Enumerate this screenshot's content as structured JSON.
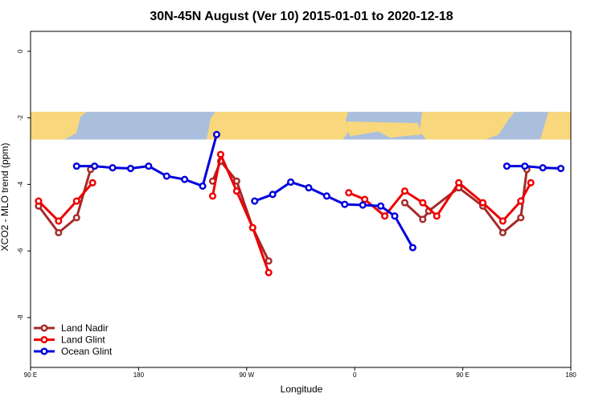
{
  "chart_data": {
    "type": "line",
    "title": "30N-45N August (Ver 10)   2015-01-01 to 2020-12-18",
    "xlabel": "Longitude",
    "ylabel": "XCO2 - MLO trend (ppm)",
    "xlim": [
      -90,
      180
    ],
    "ylim": [
      -9.5,
      0.6
    ],
    "x_ticks": [
      {
        "value": -90,
        "label": "90 E"
      },
      {
        "value": -36,
        "label": "180"
      },
      {
        "value": 18,
        "label": "90 W"
      },
      {
        "value": 72,
        "label": "0"
      },
      {
        "value": 126,
        "label": "90 E"
      },
      {
        "value": 180,
        "label": "180"
      }
    ],
    "y_ticks": [
      {
        "value": 0,
        "label": "0"
      },
      {
        "value": -2,
        "label": "-2"
      },
      {
        "value": -4,
        "label": "-4"
      },
      {
        "value": -6,
        "label": "-6"
      },
      {
        "value": -8,
        "label": "-8"
      }
    ],
    "map_band": {
      "ymin": -2.65,
      "ymax": -1.82,
      "ocean_color": "#a9bfdc",
      "land_color": "#f9d77c"
    },
    "grid": false,
    "legend_position": "bottom-left",
    "series": [
      {
        "name": "Land Nadir",
        "color": "#a52a2a",
        "segments": [
          [
            [
              -86,
              -4.65
            ],
            [
              -76,
              -5.45
            ],
            [
              -67,
              -5.0
            ],
            [
              -60,
              -3.55
            ]
          ],
          [
            [
              1,
              -3.9
            ],
            [
              5,
              -3.3
            ],
            [
              13,
              -3.9
            ],
            [
              21,
              -5.3
            ],
            [
              29,
              -6.3
            ]
          ],
          [
            [
              97,
              -4.55
            ],
            [
              106,
              -5.05
            ],
            [
              109,
              -4.8
            ],
            [
              124,
              -4.1
            ],
            [
              136,
              -4.65
            ],
            [
              146,
              -5.45
            ],
            [
              155,
              -5.0
            ],
            [
              158,
              -3.55
            ]
          ]
        ]
      },
      {
        "name": "Land Glint",
        "color": "#ee0000",
        "segments": [
          [
            [
              -86,
              -4.5
            ],
            [
              -76,
              -5.1
            ],
            [
              -67,
              -4.5
            ],
            [
              -59,
              -3.95
            ]
          ],
          [
            [
              1,
              -4.35
            ],
            [
              5,
              -3.1
            ],
            [
              13,
              -4.2
            ],
            [
              21,
              -5.3
            ],
            [
              29,
              -6.65
            ]
          ],
          [
            [
              69,
              -4.25
            ],
            [
              77,
              -4.45
            ],
            [
              87,
              -4.95
            ],
            [
              97,
              -4.2
            ],
            [
              106,
              -4.55
            ],
            [
              113,
              -4.95
            ],
            [
              124,
              -3.95
            ],
            [
              136,
              -4.55
            ],
            [
              146,
              -5.1
            ],
            [
              155,
              -4.5
            ],
            [
              160,
              -3.95
            ]
          ]
        ]
      },
      {
        "name": "Ocean Glint",
        "color": "#0000dd",
        "segments": [
          [
            [
              -67,
              -3.45
            ],
            [
              -58,
              -3.45
            ],
            [
              -49,
              -3.5
            ],
            [
              -40,
              -3.52
            ],
            [
              -31,
              -3.45
            ],
            [
              -22,
              -3.75
            ],
            [
              -13,
              -3.85
            ],
            [
              -4,
              -4.05
            ],
            [
              3,
              -2.5
            ]
          ],
          [
            [
              22,
              -4.5
            ],
            [
              31,
              -4.3
            ],
            [
              40,
              -3.93
            ],
            [
              49,
              -4.1
            ],
            [
              58,
              -4.35
            ],
            [
              67,
              -4.6
            ],
            [
              76,
              -4.62
            ],
            [
              85,
              -4.65
            ],
            [
              92,
              -4.95
            ],
            [
              101,
              -5.9
            ]
          ],
          [
            [
              148,
              -3.45
            ],
            [
              157,
              -3.45
            ],
            [
              166,
              -3.5
            ],
            [
              175,
              -3.52
            ]
          ]
        ]
      }
    ]
  }
}
